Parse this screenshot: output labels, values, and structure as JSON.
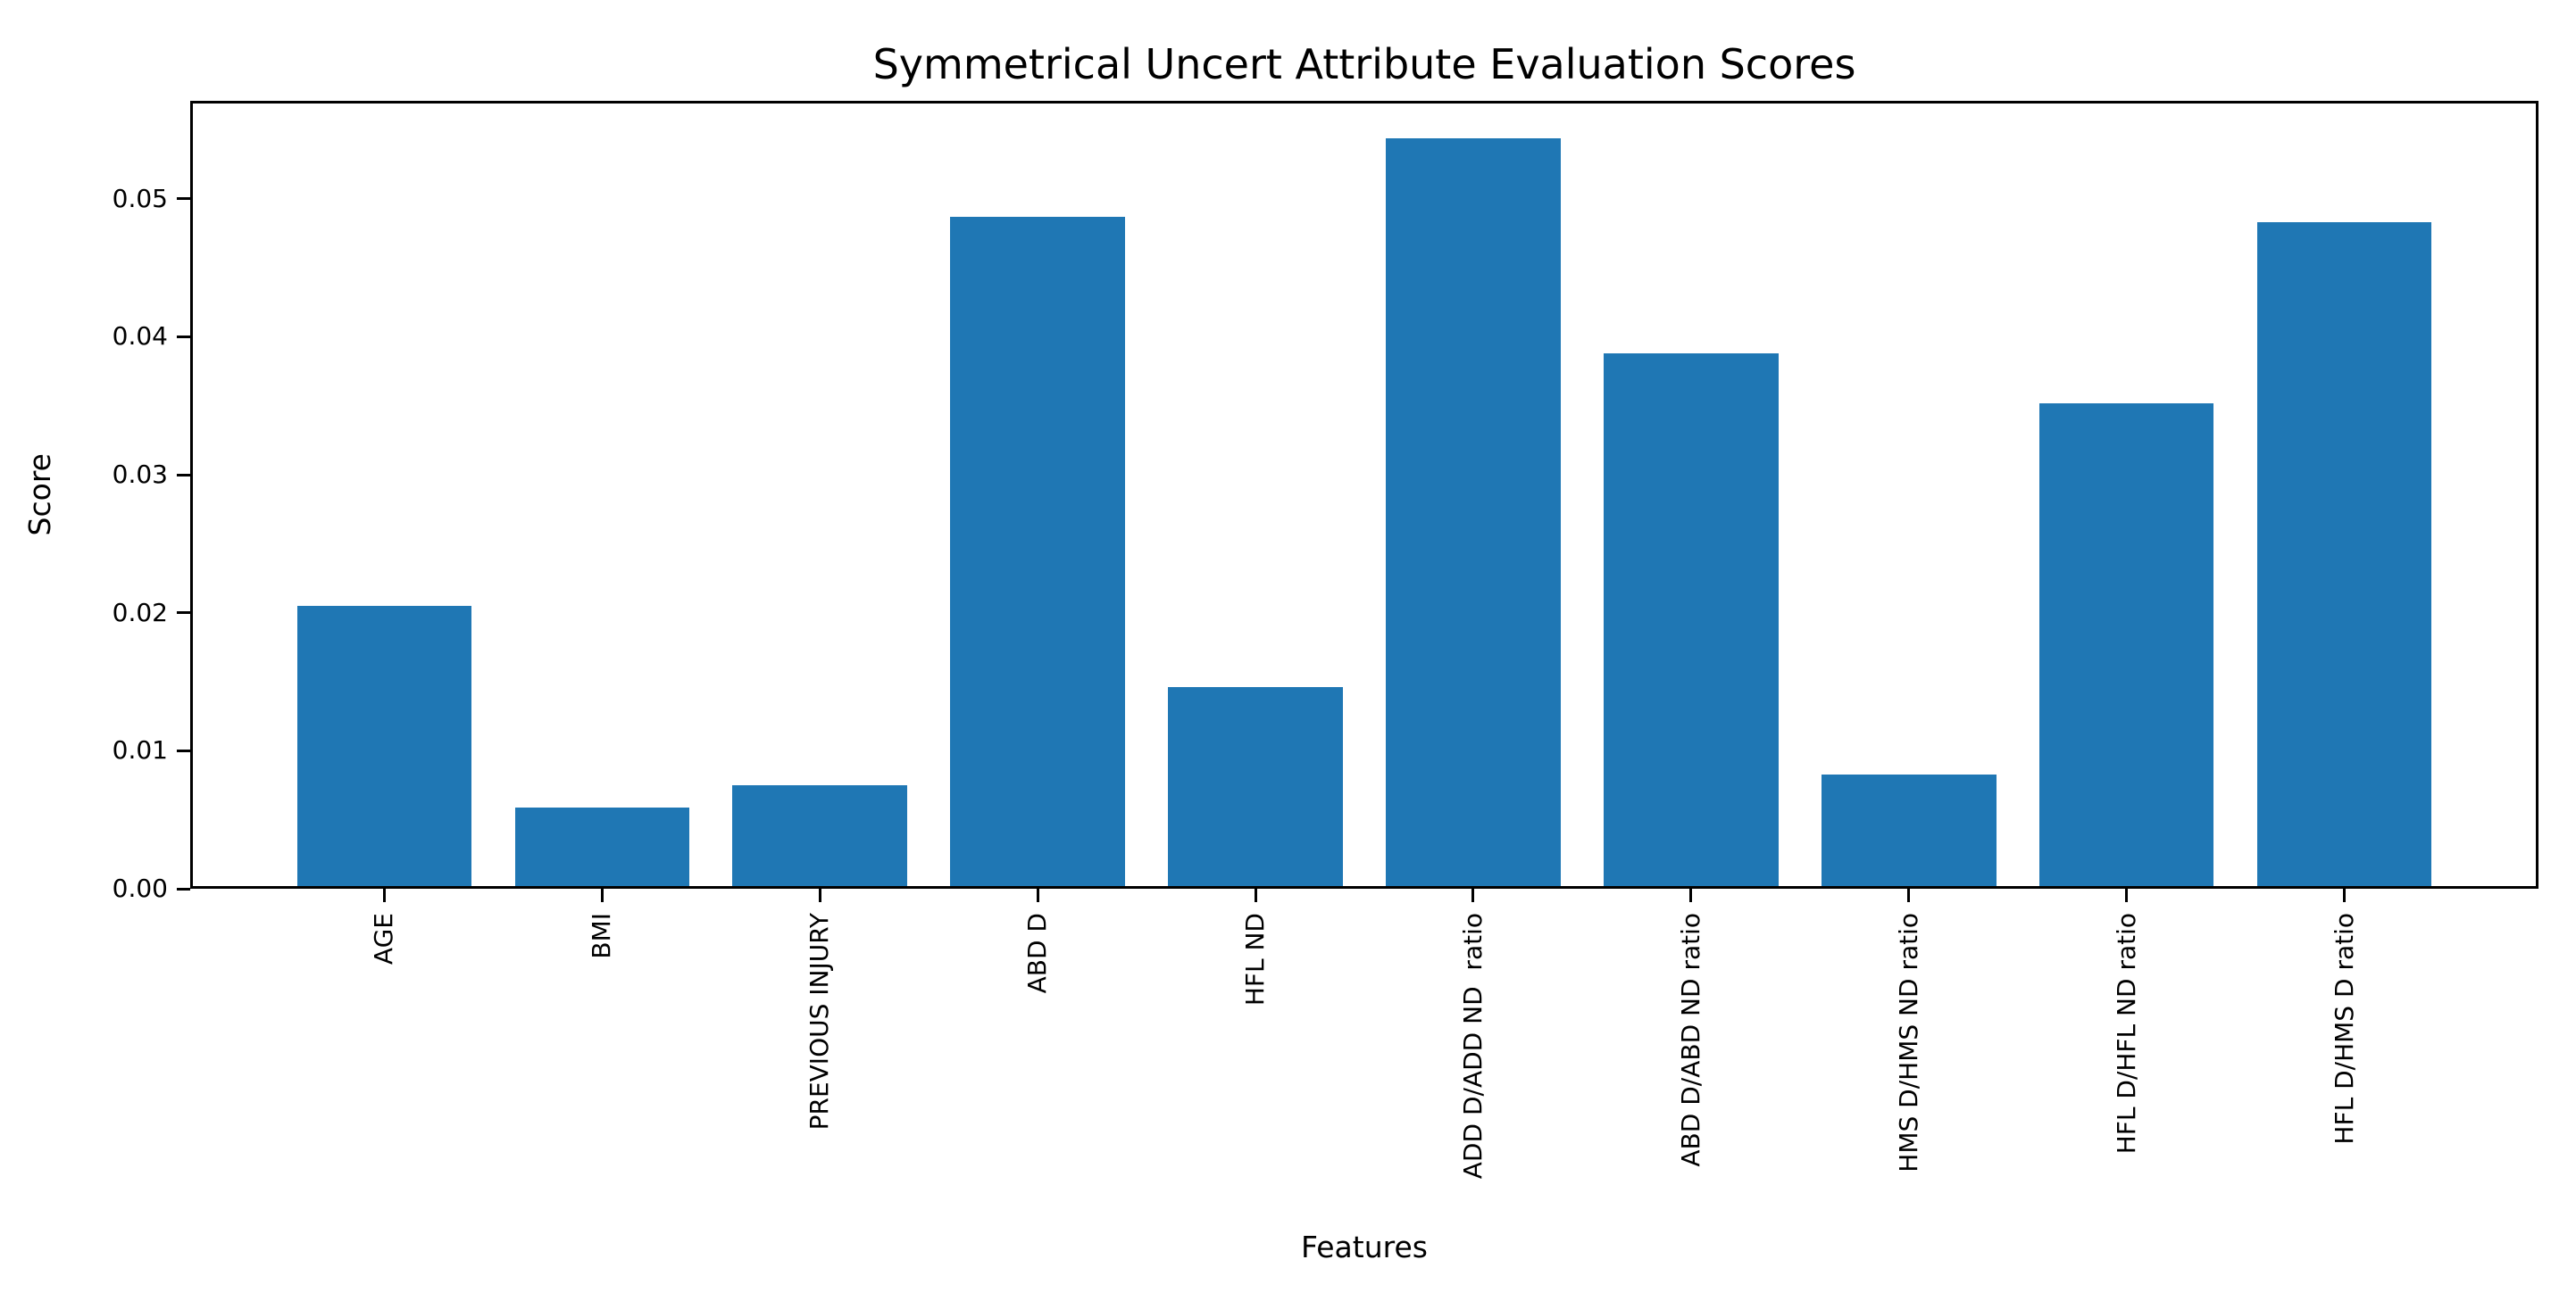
{
  "chart_data": {
    "type": "bar",
    "title": "Symmetrical Uncert Attribute Evaluation Scores",
    "xlabel": "Features",
    "ylabel": "Score",
    "categories": [
      "AGE",
      "BMI",
      "PREVIOUS INJURY",
      "ABD D",
      "HFL ND",
      "ADD D/ADD ND  ratio",
      "ABD D/ABD ND ratio",
      "HMS D/HMS ND ratio",
      "HFL D/HFL ND ratio",
      "HFL D/HMS D ratio"
    ],
    "values": [
      0.0205,
      0.0059,
      0.0075,
      0.0487,
      0.0146,
      0.0544,
      0.0388,
      0.0083,
      0.0352,
      0.0483
    ],
    "ylim": [
      0,
      0.0571
    ],
    "xlim": [
      -0.89,
      9.89
    ],
    "bar_rel_width": 0.8,
    "ytick_values": [
      0,
      0.01,
      0.02,
      0.03,
      0.04,
      0.05
    ],
    "ytick_labels": [
      "0.00",
      "0.01",
      "0.02",
      "0.03",
      "0.04",
      "0.05"
    ],
    "x_tick_rotation_deg": 90,
    "grid": false,
    "legend": "none",
    "bar_color": "#1f77b4",
    "axis_color": "#000000",
    "background_color": "#ffffff"
  }
}
